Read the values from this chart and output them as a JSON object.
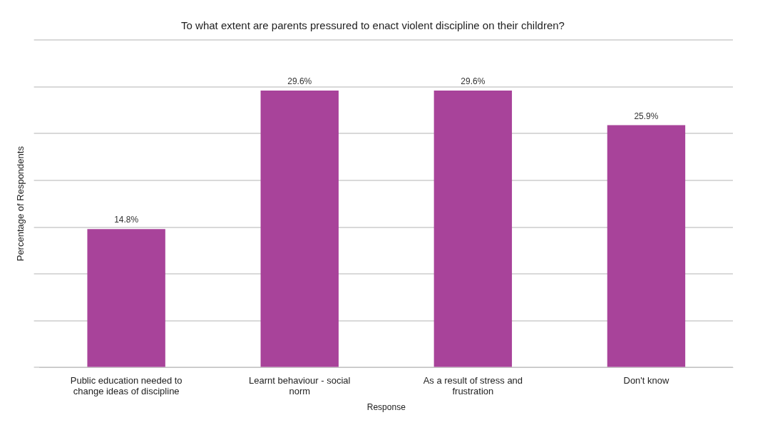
{
  "chart_data": {
    "type": "bar",
    "title": "To what extent are parents pressured to enact violent discipline on their children?",
    "xlabel": "Response",
    "ylabel": "Percentage of Respondents",
    "categories": [
      "Public education needed to change ideas of discipline",
      "Learnt behaviour - social norm",
      "As a result of stress and frustration",
      "Don't know"
    ],
    "values": [
      14.8,
      29.6,
      29.6,
      25.9
    ],
    "value_labels": [
      "14.8%",
      "29.6%",
      "29.6%",
      "25.9%"
    ],
    "color": "#a8439a",
    "ylim": [
      0,
      35
    ],
    "yticks": [
      {
        "value": 0,
        "label": null
      },
      {
        "value": 5,
        "label": null
      },
      {
        "value": 10,
        "label": null
      },
      {
        "value": 15,
        "label": null
      },
      {
        "value": 20,
        "label": null
      },
      {
        "value": 25,
        "label": null
      },
      {
        "value": 30,
        "label": null
      },
      {
        "value": 35,
        "label": null
      }
    ],
    "grid": "y",
    "legend": false
  }
}
